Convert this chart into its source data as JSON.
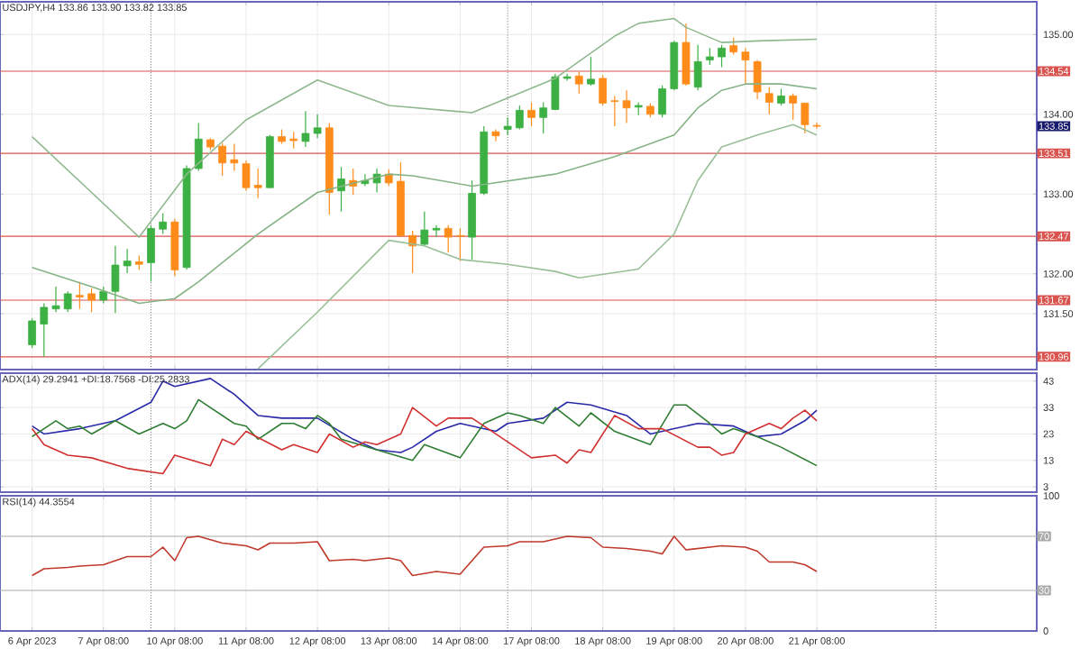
{
  "chart_data": [
    {
      "type": "candlestick",
      "title": "USDJPY,H4 133.86 133.90 133.82 133.85",
      "categories": [
        null,
        null,
        null,
        null,
        null,
        null,
        null,
        null,
        null,
        null,
        null,
        null,
        null,
        null,
        null,
        null,
        null,
        null,
        null,
        null,
        null,
        null,
        null,
        null,
        null,
        null,
        null,
        null,
        null,
        null,
        null,
        null,
        null,
        null,
        null,
        null,
        null,
        null,
        null,
        null,
        null,
        null,
        null,
        null,
        null,
        null,
        null,
        null,
        null,
        null,
        null,
        null,
        null,
        null,
        null,
        null,
        null,
        null,
        null,
        null,
        null,
        null,
        null,
        null,
        null,
        null,
        null,
        null,
        null,
        null,
        null,
        null,
        null,
        null,
        null,
        null,
        null,
        null,
        null,
        null,
        null,
        null,
        null,
        null,
        null
      ],
      "ohlc": [
        [
          131.11,
          131.44,
          131.07,
          131.41
        ],
        [
          131.37,
          131.63,
          130.96,
          131.58
        ],
        [
          131.56,
          131.84,
          131.52,
          131.6
        ],
        [
          131.56,
          131.78,
          131.52,
          131.75
        ],
        [
          131.73,
          131.9,
          131.56,
          131.71
        ],
        [
          131.75,
          131.82,
          131.52,
          131.67
        ],
        [
          131.67,
          131.84,
          131.63,
          131.78
        ],
        [
          131.78,
          132.35,
          131.51,
          132.11
        ],
        [
          132.1,
          132.31,
          132.01,
          132.16
        ],
        [
          132.15,
          132.23,
          132.05,
          132.12
        ],
        [
          132.14,
          132.61,
          131.9,
          132.57
        ],
        [
          132.56,
          132.76,
          132.5,
          132.65
        ],
        [
          132.65,
          132.69,
          131.97,
          132.05
        ],
        [
          132.08,
          133.36,
          132.05,
          133.32
        ],
        [
          133.32,
          133.89,
          133.29,
          133.69
        ],
        [
          133.68,
          133.7,
          133.55,
          133.59
        ],
        [
          133.6,
          133.64,
          133.23,
          133.39
        ],
        [
          133.43,
          133.63,
          133.29,
          133.39
        ],
        [
          133.38,
          133.42,
          133.04,
          133.08
        ],
        [
          133.11,
          133.32,
          132.95,
          133.08
        ],
        [
          133.08,
          133.74,
          133.08,
          133.72
        ],
        [
          133.72,
          133.81,
          133.63,
          133.66
        ],
        [
          133.69,
          133.78,
          133.57,
          133.67
        ],
        [
          133.66,
          134.04,
          133.59,
          133.76
        ],
        [
          133.76,
          134.0,
          133.7,
          133.83
        ],
        [
          133.83,
          133.89,
          132.74,
          133.02
        ],
        [
          133.04,
          133.34,
          132.78,
          133.19
        ],
        [
          133.17,
          133.32,
          132.99,
          133.1
        ],
        [
          133.13,
          133.25,
          133.1,
          133.17
        ],
        [
          133.14,
          133.32,
          133.02,
          133.25
        ],
        [
          133.25,
          133.31,
          133.1,
          133.14
        ],
        [
          133.16,
          133.4,
          132.46,
          132.48
        ],
        [
          132.48,
          132.54,
          132.01,
          132.35
        ],
        [
          132.37,
          132.78,
          132.35,
          132.55
        ],
        [
          132.55,
          132.61,
          132.46,
          132.57
        ],
        [
          132.57,
          132.61,
          132.27,
          132.46
        ],
        [
          132.48,
          132.57,
          132.16,
          132.47
        ],
        [
          132.46,
          133.17,
          132.18,
          133.01
        ],
        [
          133.01,
          133.85,
          132.99,
          133.78
        ],
        [
          133.78,
          133.81,
          133.66,
          133.73
        ],
        [
          133.81,
          133.96,
          133.74,
          133.85
        ],
        [
          133.83,
          134.11,
          133.81,
          134.05
        ],
        [
          134.05,
          134.15,
          133.85,
          133.96
        ],
        [
          133.96,
          134.15,
          133.76,
          134.08
        ],
        [
          134.06,
          134.51,
          134.05,
          134.47
        ],
        [
          134.45,
          134.51,
          134.42,
          134.47
        ],
        [
          134.48,
          134.53,
          134.26,
          134.38
        ],
        [
          134.38,
          134.72,
          134.36,
          134.44
        ],
        [
          134.45,
          134.49,
          134.11,
          134.14
        ],
        [
          134.17,
          134.23,
          133.85,
          134.16
        ],
        [
          134.17,
          134.3,
          133.89,
          134.08
        ],
        [
          134.11,
          134.15,
          133.99,
          134.09
        ],
        [
          134.1,
          134.14,
          133.96,
          134.0
        ],
        [
          134.0,
          134.36,
          133.96,
          134.32
        ],
        [
          134.32,
          134.92,
          134.3,
          134.9
        ],
        [
          134.9,
          135.14,
          134.36,
          134.38
        ],
        [
          134.34,
          134.87,
          134.3,
          134.66
        ],
        [
          134.68,
          134.83,
          134.62,
          134.72
        ],
        [
          134.72,
          134.87,
          134.59,
          134.83
        ],
        [
          134.86,
          134.96,
          134.75,
          134.78
        ],
        [
          134.78,
          134.83,
          134.38,
          134.68
        ],
        [
          134.66,
          134.68,
          134.19,
          134.28
        ],
        [
          134.26,
          134.34,
          134.0,
          134.15
        ],
        [
          134.14,
          134.32,
          134.11,
          134.23
        ],
        [
          134.23,
          134.26,
          133.93,
          134.14
        ],
        [
          134.14,
          134.14,
          133.76,
          133.87
        ],
        [
          133.86,
          133.9,
          133.82,
          133.85
        ],
        null,
        null,
        null,
        null,
        null,
        null,
        null,
        null,
        null,
        null,
        null,
        null,
        null,
        null,
        null,
        null,
        null,
        null
      ],
      "colors": [
        "#3cb043",
        "#3cb043",
        "#3cb043",
        "#3cb043",
        "#ff8c1a",
        "#ff8c1a",
        "#3cb043",
        "#3cb043",
        "#3cb043",
        "#ff8c1a",
        "#3cb043",
        "#3cb043",
        "#ff8c1a",
        "#3cb043",
        "#3cb043",
        "#ff8c1a",
        "#ff8c1a",
        "#ff8c1a",
        "#ff8c1a",
        "#ff8c1a",
        "#3cb043",
        "#ff8c1a",
        "#ff8c1a",
        "#3cb043",
        "#3cb043",
        "#ff8c1a",
        "#3cb043",
        "#ff8c1a",
        "#3cb043",
        "#3cb043",
        "#ff8c1a",
        "#ff8c1a",
        "#ff8c1a",
        "#3cb043",
        "#3cb043",
        "#ff8c1a",
        "#ff8c1a",
        "#3cb043",
        "#3cb043",
        "#ff8c1a",
        "#3cb043",
        "#3cb043",
        "#ff8c1a",
        "#3cb043",
        "#3cb043",
        "#3cb043",
        "#ff8c1a",
        "#3cb043",
        "#ff8c1a",
        "#ff8c1a",
        "#ff8c1a",
        "#3cb043",
        "#ff8c1a",
        "#3cb043",
        "#3cb043",
        "#ff8c1a",
        "#3cb043",
        "#3cb043",
        "#3cb043",
        "#ff8c1a",
        "#ff8c1a",
        "#ff8c1a",
        "#ff8c1a",
        "#3cb043",
        "#ff8c1a",
        "#ff8c1a",
        "#ff8c1a",
        null,
        null,
        null,
        null,
        null,
        null,
        null,
        null,
        null,
        null,
        null,
        null,
        null,
        null,
        null,
        null,
        null,
        null
      ],
      "series": [
        {
          "type": "line",
          "color": "#8fb88f",
          "values": [
            133.72,
            null,
            null,
            null,
            null,
            133.02,
            null,
            null,
            null,
            132.46,
            null,
            null,
            null,
            133.25,
            null,
            null,
            null,
            null,
            133.93,
            null,
            null,
            null,
            null,
            null,
            134.43,
            null,
            null,
            null,
            null,
            null,
            134.11,
            null,
            null,
            null,
            null,
            null,
            null,
            134.02,
            null,
            null,
            null,
            null,
            null,
            null,
            134.45,
            null,
            null,
            null,
            null,
            134.98,
            null,
            135.14,
            null,
            null,
            135.2,
            135.09,
            null,
            null,
            134.9,
            null,
            null,
            134.92,
            null,
            null,
            null,
            null,
            134.94,
            null,
            null,
            null,
            null,
            null,
            null,
            null,
            null,
            null,
            null,
            null,
            null,
            null,
            null,
            null,
            null,
            null,
            null
          ]
        },
        {
          "type": "line",
          "color": "#86b386",
          "values": [
            132.08,
            null,
            null,
            null,
            null,
            131.84,
            null,
            null,
            null,
            131.63,
            null,
            null,
            131.69,
            null,
            131.9,
            null,
            null,
            null,
            null,
            132.5,
            null,
            null,
            null,
            null,
            133.02,
            null,
            null,
            null,
            null,
            null,
            133.25,
            null,
            133.23,
            null,
            null,
            null,
            null,
            133.1,
            null,
            null,
            null,
            null,
            null,
            null,
            133.25,
            null,
            null,
            null,
            null,
            133.47,
            null,
            null,
            null,
            null,
            133.74,
            null,
            134.08,
            null,
            134.3,
            null,
            134.38,
            null,
            null,
            134.38,
            null,
            null,
            134.32,
            null,
            null,
            null,
            null,
            null,
            null,
            null,
            null,
            null,
            null,
            null,
            null,
            null,
            null,
            null,
            null,
            null,
            null
          ]
        },
        {
          "type": "line",
          "color": "#98bf98",
          "values": [
            null,
            null,
            null,
            null,
            null,
            null,
            null,
            null,
            null,
            null,
            null,
            null,
            null,
            null,
            null,
            null,
            null,
            null,
            null,
            130.81,
            null,
            null,
            null,
            null,
            131.52,
            null,
            null,
            null,
            null,
            132.27,
            132.42,
            null,
            null,
            132.35,
            null,
            null,
            132.18,
            null,
            null,
            null,
            132.12,
            null,
            null,
            null,
            132.03,
            null,
            131.95,
            null,
            null,
            null,
            null,
            132.06,
            null,
            null,
            132.5,
            null,
            133.17,
            null,
            133.59,
            null,
            null,
            133.74,
            null,
            null,
            133.87,
            null,
            133.74,
            null,
            null,
            null,
            null,
            null,
            null,
            null,
            null,
            null,
            null,
            null,
            null,
            null,
            null,
            null,
            null,
            null,
            null
          ]
        }
      ],
      "ylim": [
        130.8,
        135.41
      ],
      "yticks": [
        {
          "value": 131.5,
          "label": "131.50"
        },
        {
          "value": 132,
          "label": "132.00"
        },
        {
          "value": 133,
          "label": "133.00"
        },
        {
          "value": 134,
          "label": "134.00"
        },
        {
          "value": 135,
          "label": "135.00"
        }
      ],
      "tick_labels": "y",
      "grid": true,
      "ref_lines": [
        {
          "axis": "y",
          "value": 134.54,
          "label": "134.54",
          "color": "#d9534f",
          "line_style": "solid"
        },
        {
          "axis": "y",
          "value": 133.51,
          "label": "133.51",
          "color": "#d9534f",
          "line_style": "solid"
        },
        {
          "axis": "y",
          "value": 132.47,
          "label": "132.47",
          "color": "#d9534f",
          "line_style": "solid"
        },
        {
          "axis": "y",
          "value": 131.67,
          "label": "131.67",
          "color": "#d9534f",
          "line_style": "solid"
        },
        {
          "axis": "y",
          "value": 130.96,
          "label": "130.96",
          "color": "#d9534f",
          "line_style": "solid"
        }
      ],
      "annotations": [
        "133.85"
      ]
    },
    {
      "type": "line",
      "title": "ADX(14) 29.2941 +DI:18.7568 -DI:25.2833",
      "categories": [
        null,
        null,
        null,
        null,
        null,
        null,
        null,
        null,
        null,
        null,
        null,
        null,
        null,
        null,
        null,
        null,
        null,
        null,
        null,
        null,
        null,
        null,
        null,
        null,
        null,
        null,
        null,
        null,
        null,
        null,
        null,
        null,
        null,
        null,
        null,
        null,
        null,
        null,
        null,
        null,
        null,
        null,
        null,
        null,
        null,
        null,
        null,
        null,
        null,
        null,
        null,
        null,
        null,
        null,
        null,
        null,
        null,
        null,
        null,
        null,
        null,
        null,
        null,
        null,
        null,
        null,
        null,
        null,
        null,
        null,
        null,
        null,
        null,
        null,
        null,
        null,
        null,
        null,
        null,
        null,
        null,
        null,
        null,
        null,
        null
      ],
      "series": [
        {
          "color": "#2a2aa8",
          "values": [
            26,
            23,
            null,
            null,
            25,
            null,
            null,
            28,
            null,
            null,
            35,
            43,
            41,
            null,
            null,
            44,
            null,
            38,
            null,
            30,
            null,
            29,
            29,
            null,
            29,
            null,
            null,
            21,
            null,
            17,
            null,
            16,
            18,
            null,
            24,
            null,
            27,
            null,
            null,
            24,
            27,
            null,
            null,
            29,
            null,
            35,
            null,
            34,
            null,
            null,
            30,
            null,
            23,
            null,
            25,
            null,
            27,
            null,
            null,
            26,
            null,
            22,
            null,
            23,
            null,
            28,
            32,
            null,
            null,
            null,
            null,
            null,
            null,
            null,
            null,
            null,
            null,
            null,
            null,
            null,
            null,
            null,
            null,
            null,
            null
          ]
        },
        {
          "color": "#2e7d32",
          "values": [
            22,
            null,
            28,
            25,
            26,
            23,
            null,
            28,
            null,
            23,
            null,
            27,
            25,
            28,
            36,
            null,
            null,
            27,
            26,
            21,
            null,
            27,
            27,
            25,
            30,
            27,
            21,
            null,
            null,
            17,
            null,
            null,
            13,
            19,
            null,
            null,
            14,
            null,
            27,
            null,
            31,
            30,
            null,
            27,
            33,
            null,
            26,
            31,
            null,
            24,
            null,
            null,
            19,
            null,
            34,
            34,
            null,
            27,
            23,
            25,
            null,
            22,
            null,
            18,
            null,
            null,
            11,
            null,
            null,
            null,
            null,
            null,
            null,
            null,
            null,
            null,
            null,
            null,
            null,
            null,
            null,
            null,
            null,
            null,
            null
          ]
        },
        {
          "color": "#d03030",
          "values": [
            25,
            19,
            null,
            15,
            null,
            14,
            null,
            null,
            10,
            null,
            null,
            8,
            15,
            null,
            null,
            11,
            21,
            19,
            24,
            null,
            null,
            17,
            19,
            null,
            16,
            23,
            null,
            18,
            20,
            19,
            null,
            23,
            33,
            null,
            26,
            29,
            null,
            29,
            null,
            23,
            null,
            null,
            14,
            null,
            15,
            12,
            17,
            16,
            null,
            30,
            null,
            25,
            null,
            25,
            null,
            null,
            18,
            18,
            15,
            16,
            23,
            null,
            27,
            25,
            29,
            32,
            28,
            null,
            null,
            null,
            null,
            null,
            null,
            null,
            null,
            null,
            null,
            null,
            null,
            null,
            null,
            null,
            null,
            null,
            null
          ]
        }
      ],
      "ylim": [
        1,
        46
      ],
      "yticks": [
        3,
        13,
        23,
        33,
        43
      ],
      "tick_labels": "y",
      "grid": true
    },
    {
      "type": "line",
      "title": "RSI(14) 44.3554",
      "categories": [
        "6 Apr 2023",
        null,
        null,
        null,
        null,
        null,
        "7 Apr 08:00",
        null,
        null,
        null,
        null,
        null,
        "10 Apr 08:00",
        null,
        null,
        null,
        null,
        null,
        "11 Apr 08:00",
        null,
        null,
        null,
        null,
        null,
        "12 Apr 08:00",
        null,
        null,
        null,
        null,
        null,
        "13 Apr 08:00",
        null,
        null,
        null,
        null,
        null,
        "14 Apr 08:00",
        null,
        null,
        null,
        null,
        null,
        "17 Apr 08:00",
        null,
        null,
        null,
        null,
        null,
        "18 Apr 08:00",
        null,
        null,
        null,
        null,
        null,
        "19 Apr 08:00",
        null,
        null,
        null,
        null,
        null,
        "20 Apr 08:00",
        null,
        null,
        null,
        null,
        null,
        "21 Apr 08:00",
        null,
        null,
        null,
        null,
        null,
        null,
        null,
        null,
        null,
        null,
        null,
        null,
        null,
        null,
        null,
        null,
        null,
        null
      ],
      "series": [
        {
          "color": "#c0392b",
          "values": [
            41,
            46,
            null,
            47,
            48,
            null,
            49,
            52,
            55,
            null,
            55,
            62,
            52,
            69,
            70,
            null,
            65,
            null,
            63,
            60,
            65,
            null,
            65,
            null,
            66,
            52,
            null,
            53,
            52,
            null,
            54,
            52,
            41,
            null,
            44,
            null,
            42,
            null,
            62,
            null,
            63,
            66,
            null,
            66,
            null,
            70,
            null,
            69,
            62,
            null,
            61,
            null,
            59,
            57,
            70,
            60,
            null,
            62,
            63,
            null,
            62,
            59,
            51,
            null,
            51,
            49,
            44,
            null,
            null,
            null,
            null,
            null,
            null,
            null,
            null,
            null,
            null,
            null,
            null,
            null,
            null,
            null,
            null,
            null,
            null
          ]
        }
      ],
      "ylim": [
        0,
        100
      ],
      "yticks": [
        0,
        100
      ],
      "grid": true,
      "ref_lines": [
        {
          "axis": "y",
          "value": 70,
          "label": "70",
          "color": "#aaaaaa",
          "line_style": "solid"
        },
        {
          "axis": "y",
          "value": 30,
          "label": "30",
          "color": "#aaaaaa",
          "line_style": "solid"
        }
      ]
    }
  ]
}
